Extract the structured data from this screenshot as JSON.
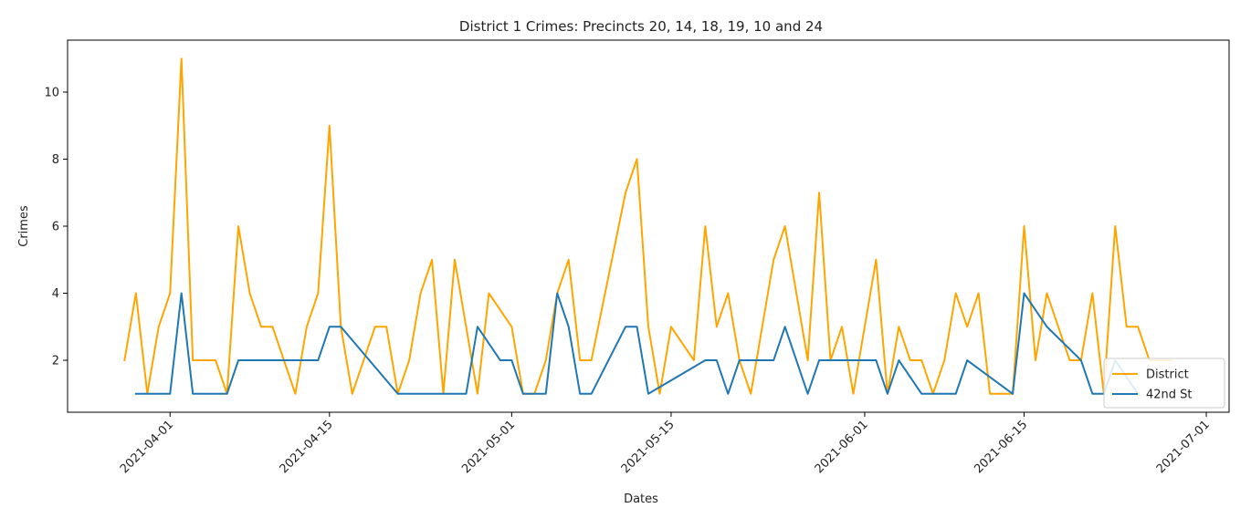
{
  "chart_data": {
    "type": "line",
    "title": "District 1 Crimes: Precincts 20, 14, 18, 19, 10 and 24",
    "xlabel": "Dates",
    "ylabel": "Crimes",
    "x_tick_labels": [
      "2021-04-01",
      "2021-04-15",
      "2021-05-01",
      "2021-05-15",
      "2021-06-01",
      "2021-06-15",
      "2021-07-01"
    ],
    "y_tick_labels": [
      "2",
      "4",
      "6",
      "8",
      "10"
    ],
    "xlim": [
      "2021-03-23",
      "2021-07-03"
    ],
    "ylim": [
      0.45,
      11.55
    ],
    "grid": false,
    "legend_position": "lower-right",
    "series": [
      {
        "name": "District",
        "color": "#ffa500",
        "points": [
          [
            "2021-03-28",
            2
          ],
          [
            "2021-03-29",
            4
          ],
          [
            "2021-03-30",
            1
          ],
          [
            "2021-03-31",
            3
          ],
          [
            "2021-04-01",
            4
          ],
          [
            "2021-04-02",
            11
          ],
          [
            "2021-04-03",
            2
          ],
          [
            "2021-04-04",
            2
          ],
          [
            "2021-04-05",
            2
          ],
          [
            "2021-04-06",
            1
          ],
          [
            "2021-04-07",
            6
          ],
          [
            "2021-04-08",
            4
          ],
          [
            "2021-04-09",
            3
          ],
          [
            "2021-04-10",
            3
          ],
          [
            "2021-04-12",
            1
          ],
          [
            "2021-04-13",
            3
          ],
          [
            "2021-04-14",
            4
          ],
          [
            "2021-04-15",
            9
          ],
          [
            "2021-04-16",
            3
          ],
          [
            "2021-04-17",
            1
          ],
          [
            "2021-04-19",
            3
          ],
          [
            "2021-04-20",
            3
          ],
          [
            "2021-04-21",
            1
          ],
          [
            "2021-04-22",
            2
          ],
          [
            "2021-04-23",
            4
          ],
          [
            "2021-04-24",
            5
          ],
          [
            "2021-04-25",
            1
          ],
          [
            "2021-04-26",
            5
          ],
          [
            "2021-04-27",
            3
          ],
          [
            "2021-04-28",
            1
          ],
          [
            "2021-04-29",
            4
          ],
          [
            "2021-05-01",
            3
          ],
          [
            "2021-05-02",
            1
          ],
          [
            "2021-05-03",
            1
          ],
          [
            "2021-05-04",
            2
          ],
          [
            "2021-05-05",
            4
          ],
          [
            "2021-05-06",
            5
          ],
          [
            "2021-05-07",
            2
          ],
          [
            "2021-05-08",
            2
          ],
          [
            "2021-05-11",
            7
          ],
          [
            "2021-05-12",
            8
          ],
          [
            "2021-05-13",
            3
          ],
          [
            "2021-05-14",
            1
          ],
          [
            "2021-05-15",
            3
          ],
          [
            "2021-05-17",
            2
          ],
          [
            "2021-05-18",
            6
          ],
          [
            "2021-05-19",
            3
          ],
          [
            "2021-05-20",
            4
          ],
          [
            "2021-05-21",
            2
          ],
          [
            "2021-05-22",
            1
          ],
          [
            "2021-05-24",
            5
          ],
          [
            "2021-05-25",
            6
          ],
          [
            "2021-05-27",
            2
          ],
          [
            "2021-05-28",
            7
          ],
          [
            "2021-05-29",
            2
          ],
          [
            "2021-05-30",
            3
          ],
          [
            "2021-05-31",
            1
          ],
          [
            "2021-06-02",
            5
          ],
          [
            "2021-06-03",
            1
          ],
          [
            "2021-06-04",
            3
          ],
          [
            "2021-06-05",
            2
          ],
          [
            "2021-06-06",
            2
          ],
          [
            "2021-06-07",
            1
          ],
          [
            "2021-06-08",
            2
          ],
          [
            "2021-06-09",
            4
          ],
          [
            "2021-06-10",
            3
          ],
          [
            "2021-06-11",
            4
          ],
          [
            "2021-06-12",
            1
          ],
          [
            "2021-06-14",
            1
          ],
          [
            "2021-06-15",
            6
          ],
          [
            "2021-06-16",
            2
          ],
          [
            "2021-06-17",
            4
          ],
          [
            "2021-06-18",
            3
          ],
          [
            "2021-06-19",
            2
          ],
          [
            "2021-06-20",
            2
          ],
          [
            "2021-06-21",
            4
          ],
          [
            "2021-06-22",
            1
          ],
          [
            "2021-06-23",
            6
          ],
          [
            "2021-06-24",
            3
          ],
          [
            "2021-06-25",
            3
          ],
          [
            "2021-06-26",
            2
          ],
          [
            "2021-06-28",
            2
          ]
        ]
      },
      {
        "name": "42nd St",
        "color": "#1f77b4",
        "points": [
          [
            "2021-03-29",
            1
          ],
          [
            "2021-04-01",
            1
          ],
          [
            "2021-04-02",
            4
          ],
          [
            "2021-04-03",
            1
          ],
          [
            "2021-04-06",
            1
          ],
          [
            "2021-04-07",
            2
          ],
          [
            "2021-04-14",
            2
          ],
          [
            "2021-04-15",
            3
          ],
          [
            "2021-04-16",
            3
          ],
          [
            "2021-04-21",
            1
          ],
          [
            "2021-04-27",
            1
          ],
          [
            "2021-04-28",
            3
          ],
          [
            "2021-04-30",
            2
          ],
          [
            "2021-05-01",
            2
          ],
          [
            "2021-05-02",
            1
          ],
          [
            "2021-05-04",
            1
          ],
          [
            "2021-05-05",
            4
          ],
          [
            "2021-05-06",
            3
          ],
          [
            "2021-05-07",
            1
          ],
          [
            "2021-05-08",
            1
          ],
          [
            "2021-05-11",
            3
          ],
          [
            "2021-05-12",
            3
          ],
          [
            "2021-05-13",
            1
          ],
          [
            "2021-05-18",
            2
          ],
          [
            "2021-05-19",
            2
          ],
          [
            "2021-05-20",
            1
          ],
          [
            "2021-05-21",
            2
          ],
          [
            "2021-05-24",
            2
          ],
          [
            "2021-05-25",
            3
          ],
          [
            "2021-05-27",
            1
          ],
          [
            "2021-05-28",
            2
          ],
          [
            "2021-06-02",
            2
          ],
          [
            "2021-06-03",
            1
          ],
          [
            "2021-06-04",
            2
          ],
          [
            "2021-06-06",
            1
          ],
          [
            "2021-06-09",
            1
          ],
          [
            "2021-06-10",
            2
          ],
          [
            "2021-06-14",
            1
          ],
          [
            "2021-06-15",
            4
          ],
          [
            "2021-06-17",
            3
          ],
          [
            "2021-06-20",
            2
          ],
          [
            "2021-06-21",
            1
          ],
          [
            "2021-06-22",
            1
          ],
          [
            "2021-06-23",
            2
          ],
          [
            "2021-06-25",
            1
          ]
        ]
      }
    ]
  }
}
